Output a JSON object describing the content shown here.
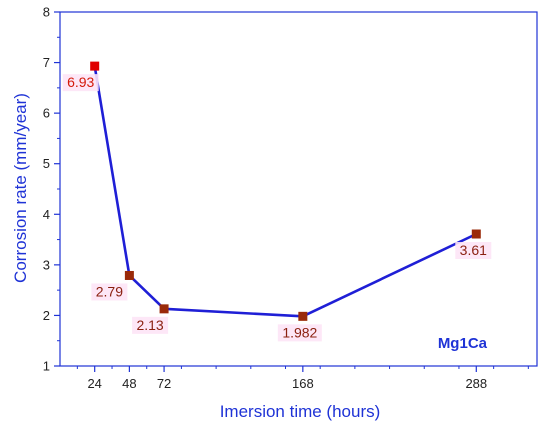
{
  "chart_data": {
    "type": "line",
    "xlabel": "Imersion time (hours)",
    "ylabel": "Corrosion rate (mm/year)",
    "xlim": [
      0,
      330
    ],
    "ylim": [
      1,
      8
    ],
    "xticks": [
      24,
      48,
      72,
      168,
      288
    ],
    "yticks": [
      1,
      2,
      3,
      4,
      5,
      6,
      7,
      8
    ],
    "grid": false,
    "series": [
      {
        "name": "Mg1Ca",
        "x": [
          24,
          48,
          72,
          168,
          288
        ],
        "y": [
          6.93,
          2.79,
          2.13,
          1.982,
          3.61
        ],
        "labels": [
          "6.93",
          "2.79",
          "2.13",
          "1.982",
          "3.61"
        ]
      }
    ],
    "colors": {
      "line": "#1f1fd6",
      "axis": "#1f33d6",
      "marker_first": "#e00000",
      "marker": "#9a2a0a",
      "label_first": "#d41a0a",
      "label": "#8a1f0f",
      "label_bg": "#fde4f6"
    }
  }
}
